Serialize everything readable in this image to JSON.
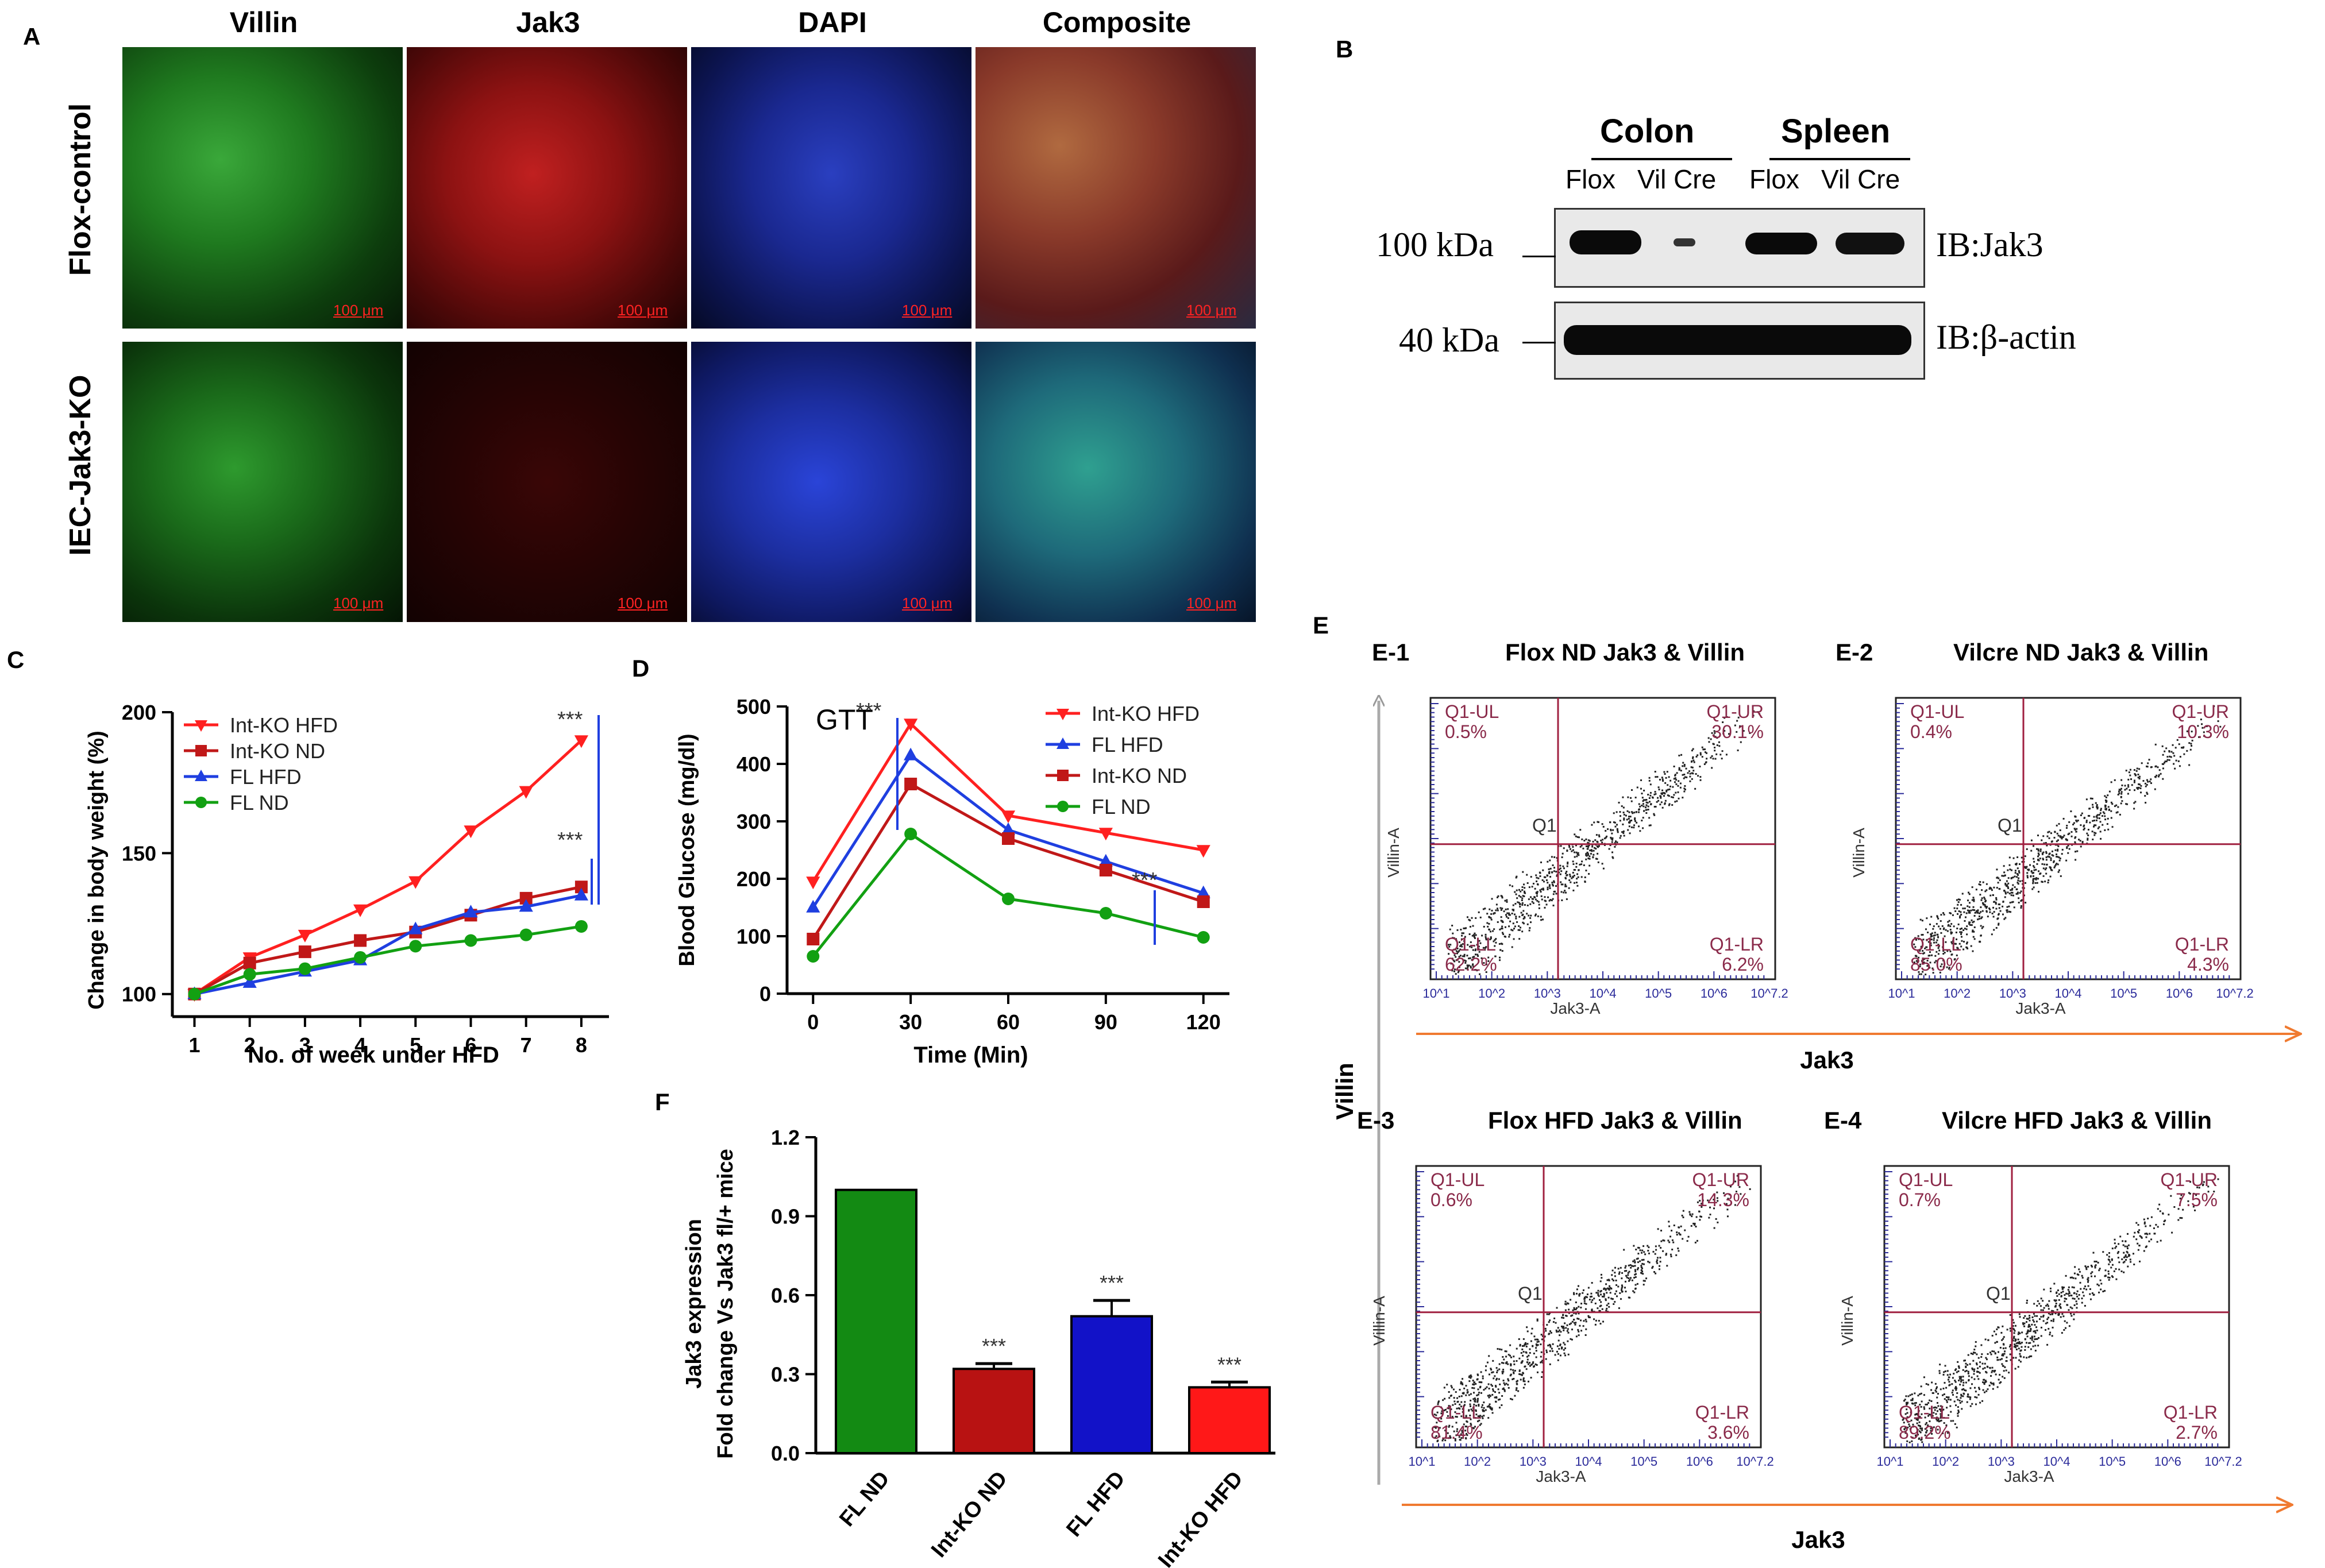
{
  "panel_a": {
    "label": "A",
    "columns": [
      "Villin",
      "Jak3",
      "DAPI",
      "Composite"
    ],
    "rows": [
      "Flox-control",
      "IEC-Jak3-KO"
    ],
    "scale_bar": "100 μm",
    "channel_colors": {
      "villin": "#1a8a1a",
      "jak3": "#c41818",
      "dapi": "#1d2ea8"
    }
  },
  "panel_b": {
    "label": "B",
    "tissues": [
      "Colon",
      "Spleen"
    ],
    "lanes": [
      "Flox",
      "Vil Cre",
      "Flox",
      "Vil Cre"
    ],
    "markers": [
      "100 kDa",
      "40 kDa"
    ],
    "antibodies": [
      "IB:Jak3",
      "IB:β-actin"
    ]
  },
  "panel_c": {
    "label": "C",
    "chart_data": {
      "type": "line",
      "title": "",
      "xlabel": "No. of week under HFD",
      "ylabel": "Change in body weight (%)",
      "x": [
        1,
        2,
        3,
        4,
        5,
        6,
        7,
        8
      ],
      "xlim": [
        0.6,
        8.5
      ],
      "ylim": [
        92,
        200
      ],
      "yticks": [
        100,
        150,
        200
      ],
      "series": [
        {
          "name": "Int-KO HFD",
          "color": "#ff2020",
          "marker": "triangle-down",
          "values": [
            100,
            113,
            121,
            130,
            140,
            158,
            172,
            190
          ]
        },
        {
          "name": "Int-KO ND",
          "color": "#c01818",
          "marker": "square",
          "values": [
            100,
            111,
            115,
            119,
            122,
            128,
            134,
            138
          ]
        },
        {
          "name": "FL HFD",
          "color": "#1f3fe0",
          "marker": "triangle-up",
          "values": [
            100,
            104,
            108,
            112,
            123,
            129,
            131,
            135
          ]
        },
        {
          "name": "FL ND",
          "color": "#12a012",
          "marker": "circle",
          "values": [
            100,
            107,
            109,
            113,
            117,
            119,
            121,
            124
          ]
        }
      ],
      "annotations": [
        "***",
        "***"
      ]
    }
  },
  "panel_d": {
    "label": "D",
    "chart_data": {
      "type": "line",
      "title": "GTT",
      "xlabel": "Time (Min)",
      "ylabel": "Blood Glucose (mg/dl)",
      "x": [
        0,
        30,
        60,
        90,
        120
      ],
      "xlim": [
        -8,
        128
      ],
      "ylim": [
        0,
        500
      ],
      "yticks": [
        0,
        100,
        200,
        300,
        400,
        500
      ],
      "series": [
        {
          "name": "Int-KO HFD",
          "color": "#ff2020",
          "marker": "triangle-down",
          "values": [
            195,
            470,
            310,
            280,
            250
          ]
        },
        {
          "name": "FL HFD",
          "color": "#1f3fe0",
          "marker": "triangle-up",
          "values": [
            150,
            415,
            285,
            230,
            175
          ]
        },
        {
          "name": "Int-KO ND",
          "color": "#c01818",
          "marker": "square",
          "values": [
            95,
            365,
            270,
            215,
            160
          ]
        },
        {
          "name": "FL ND",
          "color": "#12a012",
          "marker": "circle",
          "values": [
            65,
            278,
            165,
            140,
            98
          ]
        }
      ],
      "annotations": [
        "***",
        "***"
      ]
    }
  },
  "panel_e": {
    "label": "E",
    "axis_x": "Jak3",
    "axis_y": "Villin",
    "plots": [
      {
        "id": "E-1",
        "title": "Flox ND Jak3 & Villin",
        "UL": "0.5%",
        "UR": "30.1%",
        "LL": "62.2%",
        "LR": "6.2%"
      },
      {
        "id": "E-2",
        "title": "Vilcre ND Jak3 & Villin",
        "UL": "0.4%",
        "UR": "10.3%",
        "LL": "85.0%",
        "LR": "4.3%"
      },
      {
        "id": "E-3",
        "title": "Flox HFD Jak3 & Villin",
        "UL": "0.6%",
        "UR": "14.3%",
        "LL": "81.4%",
        "LR": "3.6%"
      },
      {
        "id": "E-4",
        "title": "Vilcre HFD Jak3 & Villin",
        "UL": "0.7%",
        "UR": "7.5%",
        "LL": "89.2%",
        "LR": "2.7%"
      }
    ],
    "quad_names": {
      "UL": "Q1-UL",
      "UR": "Q1-UR",
      "LL": "Q1-LL",
      "LR": "Q1-LR",
      "gate": "Q1"
    },
    "x_axis_label": "Jak3-A",
    "y_axis_label": "Villin-A",
    "x_ticks": [
      "10^1",
      "10^2",
      "10^3",
      "10^4",
      "10^5",
      "10^6",
      "10^7.2"
    ]
  },
  "panel_f": {
    "label": "F",
    "chart_data": {
      "type": "bar",
      "title": "",
      "ylabel_line1": "Jak3 expression",
      "ylabel_line2": "Fold change Vs Jak3 fl/+ mice",
      "categories": [
        "FL ND",
        "Int-KO ND",
        "FL HFD",
        "Int-KO HFD"
      ],
      "values": [
        1.0,
        0.32,
        0.52,
        0.25
      ],
      "errors": [
        0,
        0.02,
        0.06,
        0.02
      ],
      "colors": [
        "#138a13",
        "#b81212",
        "#1212c8",
        "#ff1818"
      ],
      "ylim": [
        0,
        1.2
      ],
      "yticks": [
        "0.0",
        "0.3",
        "0.6",
        "0.9",
        "1.2"
      ],
      "annotations": [
        "",
        "***",
        "***",
        "***"
      ]
    }
  }
}
